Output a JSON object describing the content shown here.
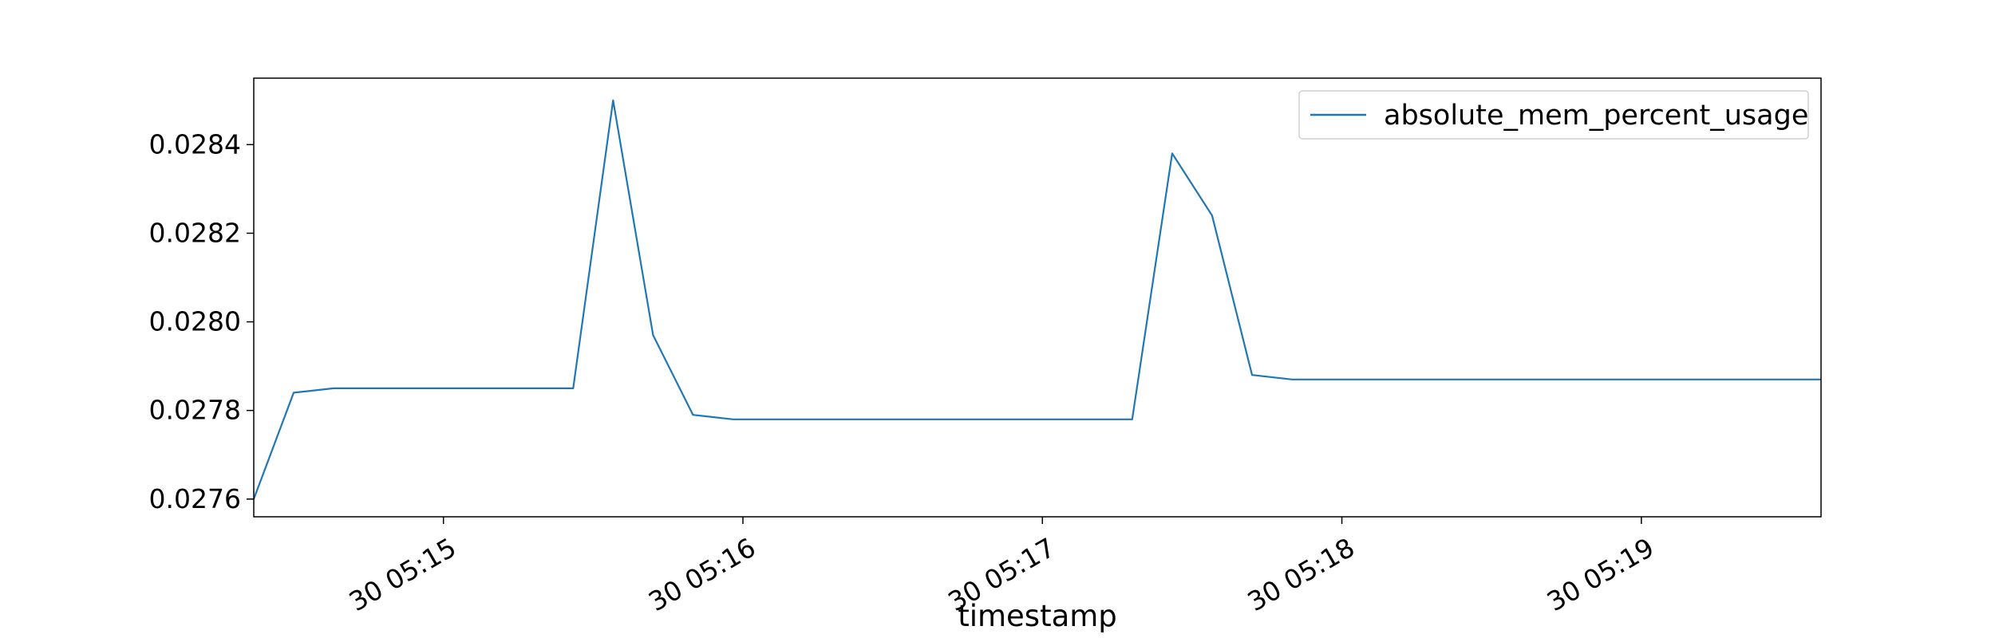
{
  "chart_data": {
    "type": "line",
    "title": "",
    "xlabel": "timestamp",
    "ylabel": "",
    "x": [
      "05:14:22",
      "05:14:30",
      "05:14:38",
      "05:14:46",
      "05:14:54",
      "05:15:02",
      "05:15:10",
      "05:15:18",
      "05:15:26",
      "05:15:34",
      "05:15:42",
      "05:15:50",
      "05:15:58",
      "05:16:06",
      "05:16:14",
      "05:16:22",
      "05:16:30",
      "05:16:38",
      "05:16:46",
      "05:16:54",
      "05:17:02",
      "05:17:10",
      "05:17:18",
      "05:17:26",
      "05:17:34",
      "05:17:42",
      "05:17:50",
      "05:17:58",
      "05:18:06",
      "05:18:14",
      "05:18:22",
      "05:18:30",
      "05:18:38",
      "05:18:46",
      "05:18:54",
      "05:19:02",
      "05:19:10",
      "05:19:18",
      "05:19:26",
      "05:19:36"
    ],
    "series": [
      {
        "name": "absolute_mem_percent_usage",
        "color": "#1f77b4",
        "values": [
          0.0276,
          0.02784,
          0.02785,
          0.02785,
          0.02785,
          0.02785,
          0.02785,
          0.02785,
          0.02785,
          0.0285,
          0.02797,
          0.02779,
          0.02778,
          0.02778,
          0.02778,
          0.02778,
          0.02778,
          0.02778,
          0.02778,
          0.02778,
          0.02778,
          0.02778,
          0.02778,
          0.02838,
          0.02824,
          0.02788,
          0.02787,
          0.02787,
          0.02787,
          0.02787,
          0.02787,
          0.02787,
          0.02787,
          0.02787,
          0.02787,
          0.02787,
          0.02787,
          0.02787,
          0.02787,
          0.02787
        ]
      }
    ],
    "xlim": [
      "05:14:22",
      "05:19:36"
    ],
    "ylim": [
      0.02756,
      0.02855
    ],
    "y_ticks": [
      {
        "value": 0.0276,
        "label": "0.0276"
      },
      {
        "value": 0.0278,
        "label": "0.0278"
      },
      {
        "value": 0.028,
        "label": "0.0280"
      },
      {
        "value": 0.0282,
        "label": "0.0282"
      },
      {
        "value": 0.0284,
        "label": "0.0284"
      }
    ],
    "x_ticks": [
      {
        "value": "05:15:00",
        "label": "30 05:15"
      },
      {
        "value": "05:16:00",
        "label": "30 05:16"
      },
      {
        "value": "05:17:00",
        "label": "30 05:17"
      },
      {
        "value": "05:18:00",
        "label": "30 05:18"
      },
      {
        "value": "05:19:00",
        "label": "30 05:19"
      }
    ],
    "grid": false,
    "legend": "top-right"
  }
}
